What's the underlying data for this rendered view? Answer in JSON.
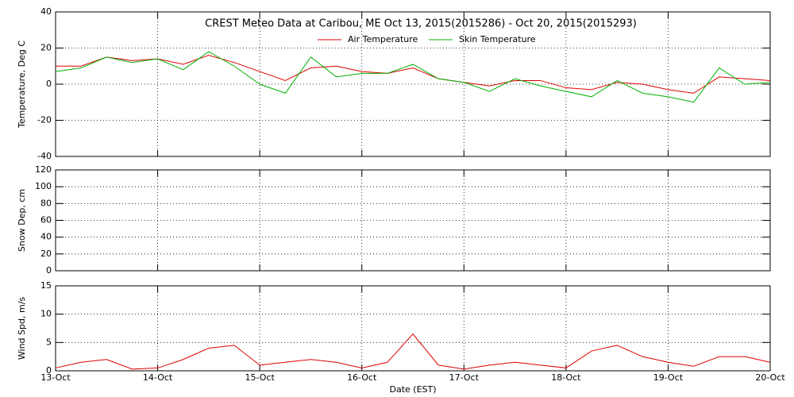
{
  "chart_data": [
    {
      "type": "line",
      "title": "CREST Meteo Data at Caribou, ME   Oct 13, 2015(2015286) - Oct 20, 2015(2015293)",
      "ylabel": "Temperature, Deg C",
      "legend": "upper center",
      "grid": true,
      "xlim": [
        0,
        7
      ],
      "xticks": [
        0,
        1,
        2,
        3,
        4,
        5,
        6,
        7
      ],
      "ylim": [
        -40,
        40
      ],
      "yticks": [
        -40,
        -20,
        0,
        20,
        40
      ],
      "x": [
        0,
        0.25,
        0.5,
        0.75,
        1,
        1.25,
        1.5,
        1.75,
        2,
        2.25,
        2.5,
        2.75,
        3,
        3.25,
        3.5,
        3.75,
        4,
        4.25,
        4.5,
        4.75,
        5,
        5.25,
        5.5,
        5.75,
        6,
        6.25,
        6.5,
        6.75,
        7
      ],
      "series": [
        {
          "name": "Air Temperature",
          "color": "#e00000",
          "values": [
            10,
            10,
            15,
            13,
            14,
            11,
            16,
            12,
            7,
            2,
            9,
            10,
            7,
            6,
            9,
            3,
            1,
            -1,
            2,
            2,
            -2,
            -3,
            1,
            0,
            -3,
            -5,
            4,
            3,
            2
          ]
        },
        {
          "name": "Skin Temperature",
          "color": "#00b000",
          "values": [
            7,
            9,
            15,
            12,
            14,
            8,
            18,
            10,
            0,
            -5,
            15,
            4,
            6,
            6,
            11,
            3,
            1,
            -4,
            3,
            -1,
            -4,
            -7,
            2,
            -5,
            -7,
            -10,
            9,
            0,
            1
          ]
        }
      ]
    },
    {
      "type": "line",
      "ylabel": "Snow Dep, cm",
      "grid": true,
      "xlim": [
        0,
        7
      ],
      "xticks": [
        0,
        1,
        2,
        3,
        4,
        5,
        6,
        7
      ],
      "ylim": [
        0,
        120
      ],
      "yticks": [
        0,
        20,
        40,
        60,
        80,
        100,
        120
      ]
    },
    {
      "type": "line",
      "ylabel": "Wind Spd, m/s",
      "xlabel": "Date (EST)",
      "grid": true,
      "xlim": [
        0,
        7
      ],
      "xticks": [
        {
          "value": 0,
          "label": "13-Oct"
        },
        {
          "value": 1,
          "label": "14-Oct"
        },
        {
          "value": 2,
          "label": "15-Oct"
        },
        {
          "value": 3,
          "label": "16-Oct"
        },
        {
          "value": 4,
          "label": "17-Oct"
        },
        {
          "value": 5,
          "label": "18-Oct"
        },
        {
          "value": 6,
          "label": "19-Oct"
        },
        {
          "value": 7,
          "label": "20-Oct"
        }
      ],
      "ylim": [
        0,
        15
      ],
      "yticks": [
        0,
        5,
        10,
        15
      ],
      "x": [
        0,
        0.25,
        0.5,
        0.75,
        1,
        1.25,
        1.5,
        1.75,
        2,
        2.25,
        2.5,
        2.75,
        3,
        3.25,
        3.5,
        3.75,
        4,
        4.25,
        4.5,
        4.75,
        5,
        5.25,
        5.5,
        5.75,
        6,
        6.25,
        6.5,
        6.75,
        7
      ],
      "series": [
        {
          "color": "#e00000",
          "values": [
            0.5,
            1.5,
            2,
            0.3,
            0.5,
            2,
            4,
            4.5,
            1,
            1.5,
            2,
            1.5,
            0.5,
            1.5,
            6.5,
            1,
            0.3,
            1,
            1.5,
            1,
            0.5,
            3.5,
            4.5,
            2.5,
            1.5,
            0.8,
            2.5,
            2.5,
            1.5
          ]
        }
      ]
    }
  ]
}
